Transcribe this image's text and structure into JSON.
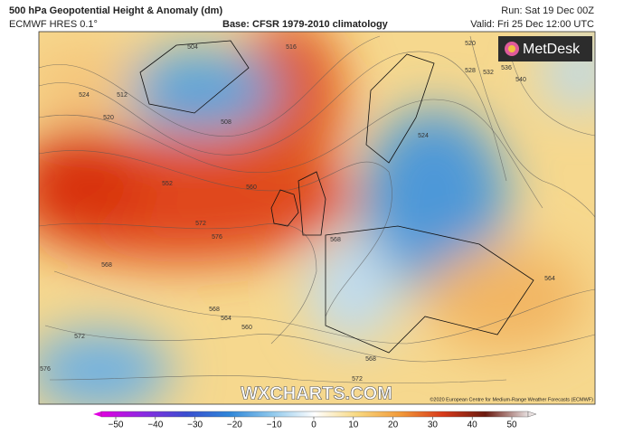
{
  "header": {
    "title": "500 hPa Geopotential Height & Anomaly (dm)",
    "model": "ECMWF HRES 0.1°",
    "base": "Base: CFSR 1979-2010 climatology",
    "run": "Run: Sat 19 Dec 00Z",
    "valid": "Valid: Fri 25 Dec 12:00 UTC"
  },
  "logo": "MetDesk",
  "watermark": "WXCHARTS.COM",
  "credit": "©2020 European Centre for Medium-Range Weather Forecasts (ECMWF)",
  "contour_labels": [
    504,
    508,
    512,
    516,
    520,
    520,
    524,
    524,
    528,
    532,
    536,
    540,
    552,
    560,
    568,
    568,
    572,
    576,
    564,
    560,
    564,
    572,
    576,
    568,
    572,
    568
  ],
  "colorbar": {
    "lim": [
      -50,
      50
    ],
    "ticks": [
      {
        "value": -50,
        "label": "−50"
      },
      {
        "value": -40,
        "label": "−40"
      },
      {
        "value": -30,
        "label": "−30"
      },
      {
        "value": -20,
        "label": "−20"
      },
      {
        "value": -10,
        "label": "−10"
      },
      0,
      10,
      20,
      30,
      40,
      50
    ]
  }
}
